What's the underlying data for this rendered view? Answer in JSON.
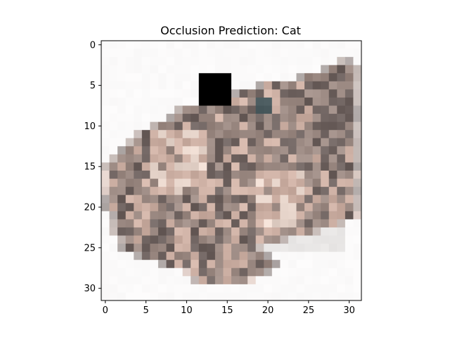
{
  "chart_data": {
    "type": "heatmap",
    "title": "Occlusion Prediction: Cat",
    "xlabel": "",
    "ylabel": "",
    "grid": false,
    "xlim": [
      -0.5,
      31.5
    ],
    "ylim": [
      31.5,
      -0.5
    ],
    "xticks": [
      0,
      5,
      10,
      15,
      20,
      25,
      30
    ],
    "yticks": [
      0,
      5,
      10,
      15,
      20,
      25,
      30
    ],
    "xtick_labels": [
      "0",
      "5",
      "10",
      "15",
      "20",
      "25",
      "30"
    ],
    "ytick_labels": [
      "0",
      "5",
      "10",
      "15",
      "20",
      "25",
      "30"
    ],
    "image_size": [
      32,
      32
    ],
    "occlusion_patch": {
      "col_start": 12,
      "col_end": 15,
      "row_start": 4,
      "row_end": 7,
      "color": "#000000"
    },
    "subject": "low-resolution photo of a brown tabby cat lying on a white background",
    "colors": {
      "background": "#fbfafa",
      "fur_dark": "#6f6360",
      "fur_mid": "#9c8a83",
      "fur_light": "#cdb0a4",
      "fur_pale": "#e8d6cc",
      "eye": "#4a5a5e",
      "shadow": "#e9e7e6"
    }
  }
}
